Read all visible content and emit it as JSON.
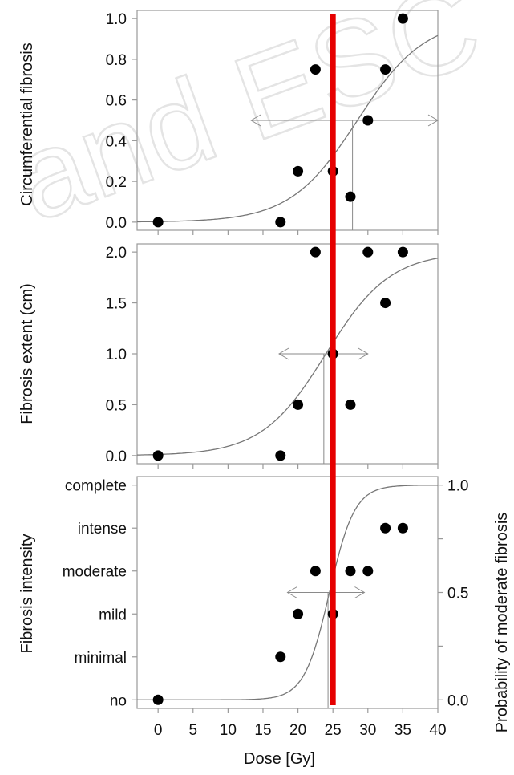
{
  "watermark": "and ESC",
  "colors": {
    "markers": "#000000",
    "curve": "#777777",
    "frame": "#9a9a9a",
    "ci": "#8a8a8a",
    "red_line": "#e60000"
  },
  "chart_data": [
    {
      "type": "scatter",
      "ylabel": "Circumferential fibrosis",
      "xlim": [
        -3,
        40
      ],
      "ylim": [
        -0.04,
        1.04
      ],
      "yticks": [
        "0.0",
        "0.2",
        "0.4",
        "0.6",
        "0.8",
        "1.0"
      ],
      "ytick_values": [
        0.0,
        0.2,
        0.4,
        0.6,
        0.8,
        1.0
      ],
      "points": [
        {
          "x": 0,
          "y": 0.0
        },
        {
          "x": 17.5,
          "y": 0.0
        },
        {
          "x": 20,
          "y": 0.25
        },
        {
          "x": 22.5,
          "y": 0.75
        },
        {
          "x": 25,
          "y": 0.25
        },
        {
          "x": 27.5,
          "y": 0.125
        },
        {
          "x": 30,
          "y": 0.5
        },
        {
          "x": 32.5,
          "y": 0.75
        },
        {
          "x": 35,
          "y": 1.0
        }
      ],
      "fit_curve": {
        "type": "logistic",
        "ymax": 1.0,
        "d50": 28.5,
        "scale": 4.8
      },
      "d50_marker": {
        "x": 27.8,
        "y": 0.5,
        "ci_low": 13.3,
        "ci_high": 40
      }
    },
    {
      "type": "scatter",
      "ylabel": "Fibrosis extent (cm)",
      "xlim": [
        -3,
        40
      ],
      "ylim": [
        -0.08,
        2.08
      ],
      "yticks": [
        "0.0",
        "0.5",
        "1.0",
        "1.5",
        "2.0"
      ],
      "ytick_values": [
        0.0,
        0.5,
        1.0,
        1.5,
        2.0
      ],
      "points": [
        {
          "x": 0,
          "y": 0.0
        },
        {
          "x": 17.5,
          "y": 0.0
        },
        {
          "x": 20,
          "y": 0.5
        },
        {
          "x": 22.5,
          "y": 2.0
        },
        {
          "x": 25,
          "y": 1.0
        },
        {
          "x": 27.5,
          "y": 0.5
        },
        {
          "x": 30,
          "y": 2.0
        },
        {
          "x": 32.5,
          "y": 1.5
        },
        {
          "x": 35,
          "y": 2.0
        }
      ],
      "fit_curve": {
        "type": "logistic",
        "ymax": 2.0,
        "d50": 24.0,
        "scale": 4.6
      },
      "d50_marker": {
        "x": 23.7,
        "y": 1.0,
        "ci_low": 17.3,
        "ci_high": 30.0
      }
    },
    {
      "type": "scatter",
      "ylabel": "Fibrosis intensity",
      "ylabel_right": "Probability of moderate fibrosis",
      "xlabel": "Dose [Gy]",
      "xlim": [
        -3,
        40
      ],
      "xticks": [
        "0",
        "5",
        "10",
        "15",
        "20",
        "25",
        "30",
        "35",
        "40"
      ],
      "xtick_values": [
        0,
        5,
        10,
        15,
        20,
        25,
        30,
        35,
        40
      ],
      "ylim": [
        -0.2,
        5.2
      ],
      "yticks": [
        "no",
        "minimal",
        "mild",
        "moderate",
        "intense",
        "complete"
      ],
      "ytick_values": [
        0,
        1,
        2,
        3,
        4,
        5
      ],
      "y2ticks": [
        "0.0",
        "0.5",
        "1.0"
      ],
      "y2tick_values": [
        0.0,
        0.5,
        1.0
      ],
      "points": [
        {
          "x": 0,
          "y": 0
        },
        {
          "x": 17.5,
          "y": 1
        },
        {
          "x": 20,
          "y": 2
        },
        {
          "x": 22.5,
          "y": 3
        },
        {
          "x": 25,
          "y": 2
        },
        {
          "x": 27.5,
          "y": 3
        },
        {
          "x": 30,
          "y": 3
        },
        {
          "x": 32.5,
          "y": 4
        },
        {
          "x": 35,
          "y": 4
        }
      ],
      "fit_curve": {
        "type": "logistic",
        "ymax": 1.0,
        "d50": 24.5,
        "scale": 1.8,
        "axis": "right"
      },
      "d50_marker": {
        "x": 24.3,
        "y2": 0.5,
        "ci_low": 18.5,
        "ci_high": 29.5
      }
    }
  ],
  "red_line_dose": 25
}
